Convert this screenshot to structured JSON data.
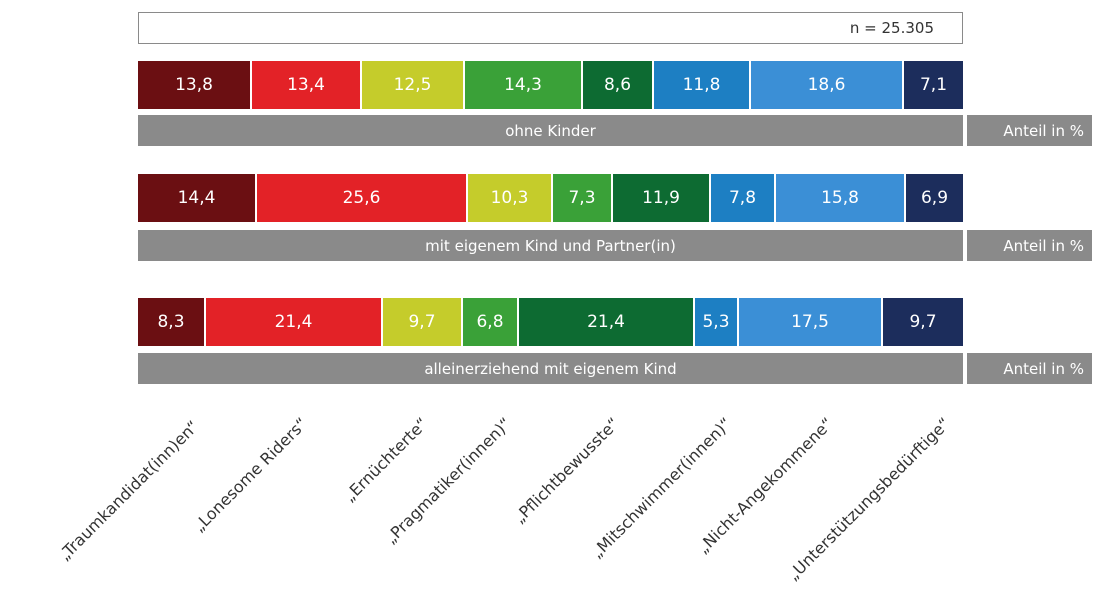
{
  "chart_data": {
    "type": "bar",
    "orientation": "horizontal-stacked-100",
    "sample_note": "n = 25.305",
    "unit_label": "Anteil in %",
    "categories": [
      "„Traumkandidat(inn)en“",
      "„Lonesome Riders“",
      "„Ernüchterte“",
      "„Pragmatiker(innen)“",
      "„Pflichtbewusste“",
      "„Mitschwimmer(innen)“",
      "„Nicht-Angekommene“",
      "„Unterstützungsbedürftige“"
    ],
    "colors": [
      "#6b0f12",
      "#e32227",
      "#c5cc2b",
      "#3aa138",
      "#0d6b32",
      "#1d7fc3",
      "#3b8fd6",
      "#1c2d5c"
    ],
    "groups": [
      {
        "label": "ohne Kinder",
        "values": [
          13.8,
          13.4,
          12.5,
          14.3,
          8.6,
          11.8,
          18.6,
          7.1
        ],
        "value_labels": [
          "13,8",
          "13,4",
          "12,5",
          "14,3",
          "8,6",
          "11,8",
          "18,6",
          "7,1"
        ]
      },
      {
        "label": "mit eigenem Kind und Partner(in)",
        "values": [
          14.4,
          25.6,
          10.3,
          7.3,
          11.9,
          7.8,
          15.8,
          6.9
        ],
        "value_labels": [
          "14,4",
          "25,6",
          "10,3",
          "7,3",
          "11,9",
          "7,8",
          "15,8",
          "6,9"
        ]
      },
      {
        "label": "alleinerziehend mit eigenem Kind",
        "values": [
          8.3,
          21.4,
          9.7,
          6.8,
          21.4,
          5.3,
          17.5,
          9.7
        ],
        "value_labels": [
          "8,3",
          "21,4",
          "9,7",
          "6,8",
          "21,4",
          "5,3",
          "17,5",
          "9,7"
        ]
      }
    ]
  }
}
